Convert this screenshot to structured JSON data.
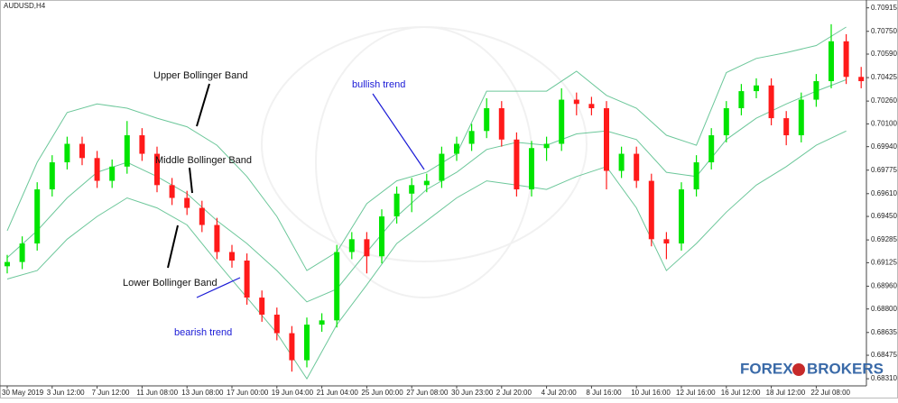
{
  "chart_data": {
    "type": "candlestick",
    "title": "AUDUSD,H4",
    "categories": [
      "30 May 2019",
      null,
      null,
      "3 Jun 12:00",
      null,
      null,
      "7 Jun 12:00",
      null,
      null,
      "11 Jun 08:00",
      null,
      null,
      "13 Jun 08:00",
      null,
      null,
      "17 Jun 00:00",
      null,
      null,
      "19 Jun 04:00",
      null,
      null,
      "21 Jun 04:00",
      null,
      null,
      "25 Jun 00:00",
      null,
      null,
      "27 Jun 08:00",
      null,
      null,
      "30 Jun 23:00",
      null,
      null,
      "2 Jul 20:00",
      null,
      null,
      "4 Jul 20:00",
      null,
      null,
      "8 Jul 16:00",
      null,
      null,
      "10 Jul 16:00",
      null,
      null,
      "12 Jul 16:00",
      null,
      null,
      "16 Jul 12:00",
      null,
      null,
      "18 Jul 12:00",
      null,
      null,
      "22 Jul 08:00",
      null,
      null,
      null
    ],
    "open": [
      0.691,
      0.6913,
      0.6926,
      0.6964,
      0.6983,
      0.6996,
      0.6986,
      0.697,
      0.698,
      0.7002,
      0.6989,
      0.6967,
      0.6958,
      0.6951,
      0.6939,
      0.692,
      0.6914,
      0.6888,
      0.6876,
      0.6863,
      0.6844,
      0.6869,
      0.6872,
      0.692,
      0.6929,
      0.6917,
      0.6945,
      0.6961,
      0.6967,
      0.697,
      0.6989,
      0.6996,
      0.7005,
      0.7021,
      0.6999,
      0.6964,
      0.6993,
      0.6996,
      0.7027,
      0.7024,
      0.7021,
      0.6977,
      0.6989,
      0.697,
      0.6929,
      0.6926,
      0.6964,
      0.6983,
      0.7002,
      0.7021,
      0.7033,
      0.7037,
      0.7014,
      0.7002,
      0.7027,
      0.704,
      0.7068,
      0.7043
    ],
    "high": [
      0.6918,
      0.6931,
      0.6969,
      0.6988,
      0.7001,
      0.7001,
      0.6991,
      0.6985,
      0.7012,
      0.7007,
      0.6994,
      0.6972,
      0.6963,
      0.6956,
      0.6944,
      0.6925,
      0.6919,
      0.6893,
      0.6881,
      0.6868,
      0.6874,
      0.6877,
      0.6925,
      0.6934,
      0.6934,
      0.695,
      0.6966,
      0.6972,
      0.6975,
      0.6994,
      0.7001,
      0.701,
      0.7028,
      0.7026,
      0.7004,
      0.6998,
      0.7001,
      0.7035,
      0.7032,
      0.7029,
      0.7026,
      0.6994,
      0.6994,
      0.6975,
      0.6934,
      0.6969,
      0.6988,
      0.7007,
      0.7026,
      0.7038,
      0.7042,
      0.7042,
      0.7019,
      0.7032,
      0.7045,
      0.708,
      0.7073,
      0.705
    ],
    "low": [
      0.6905,
      0.6908,
      0.6921,
      0.6959,
      0.6978,
      0.6981,
      0.6965,
      0.6965,
      0.6975,
      0.6984,
      0.6962,
      0.6953,
      0.6946,
      0.6934,
      0.6915,
      0.6909,
      0.6883,
      0.6871,
      0.6858,
      0.6836,
      0.6839,
      0.6864,
      0.6867,
      0.6915,
      0.6905,
      0.6912,
      0.694,
      0.6948,
      0.6962,
      0.6965,
      0.6984,
      0.6991,
      0.7,
      0.6994,
      0.6959,
      0.6959,
      0.6984,
      0.6991,
      0.7016,
      0.7016,
      0.6964,
      0.6972,
      0.6965,
      0.6924,
      0.6915,
      0.6921,
      0.6959,
      0.6978,
      0.6997,
      0.7016,
      0.7028,
      0.7009,
      0.6995,
      0.6997,
      0.7022,
      0.7035,
      0.7038,
      0.7035
    ],
    "close": [
      0.6913,
      0.6926,
      0.6964,
      0.6983,
      0.6996,
      0.6986,
      0.697,
      0.698,
      0.7002,
      0.6989,
      0.6967,
      0.6958,
      0.6951,
      0.6939,
      0.692,
      0.6914,
      0.6888,
      0.6876,
      0.6863,
      0.6844,
      0.6869,
      0.6872,
      0.692,
      0.6929,
      0.6917,
      0.6945,
      0.6961,
      0.6967,
      0.697,
      0.6989,
      0.6996,
      0.7005,
      0.7021,
      0.6999,
      0.6964,
      0.6993,
      0.6996,
      0.7027,
      0.7024,
      0.7021,
      0.6977,
      0.6989,
      0.697,
      0.6929,
      0.6926,
      0.6964,
      0.6983,
      0.7002,
      0.7021,
      0.7033,
      0.7037,
      0.7014,
      0.7002,
      0.7027,
      0.704,
      0.7068,
      0.7043,
      0.704
    ],
    "up_color": "#00e400",
    "down_color": "#ff1a1a",
    "bands": {
      "x": [
        0,
        2,
        4,
        6,
        8,
        10,
        12,
        14,
        16,
        18,
        20,
        22,
        24,
        26,
        28,
        30,
        32,
        34,
        36,
        38,
        40,
        42,
        44,
        46,
        48,
        50,
        52,
        54,
        56
      ],
      "series": [
        {
          "color": "#6cc79a",
          "values": [
            0.6935,
            0.6983,
            0.7018,
            0.7024,
            0.7021,
            0.7014,
            0.7008,
            0.6995,
            0.6973,
            0.6945,
            0.6907,
            0.692,
            0.6954,
            0.697,
            0.6976,
            0.6989,
            0.7033,
            0.7033,
            0.7033,
            0.7047,
            0.703,
            0.7021,
            0.7002,
            0.6995,
            0.7046,
            0.7056,
            0.706,
            0.7065,
            0.7078
          ]
        },
        {
          "color": "#6cc79a",
          "values": [
            0.6916,
            0.6935,
            0.6958,
            0.6976,
            0.6983,
            0.6973,
            0.6961,
            0.6942,
            0.6926,
            0.6907,
            0.6885,
            0.6894,
            0.692,
            0.6945,
            0.6964,
            0.6976,
            0.6992,
            0.6997,
            0.6995,
            0.7003,
            0.7005,
            0.6999,
            0.6976,
            0.6973,
            0.6999,
            0.7014,
            0.7024,
            0.7033,
            0.7041
          ]
        },
        {
          "color": "#6cc79a",
          "values": [
            0.6901,
            0.6907,
            0.6929,
            0.6945,
            0.6958,
            0.6951,
            0.6939,
            0.6913,
            0.6888,
            0.6863,
            0.6831,
            0.6869,
            0.6897,
            0.6926,
            0.6942,
            0.6958,
            0.697,
            0.6967,
            0.6964,
            0.6973,
            0.698,
            0.6951,
            0.6907,
            0.6926,
            0.6948,
            0.6967,
            0.698,
            0.6995,
            0.7005
          ]
        }
      ]
    },
    "ylim": [
      0.6826,
      0.7097
    ],
    "yticks": [
      0.70915,
      {
        "value": 0.7075,
        "label": "0.70750"
      },
      {
        "value": 0.7059,
        "label": "0.70590"
      },
      0.70425,
      {
        "value": 0.7026,
        "label": "0.70260"
      },
      {
        "value": 0.701,
        "label": "0.70100"
      },
      {
        "value": 0.6994,
        "label": "0.69940"
      },
      0.69775,
      {
        "value": 0.6961,
        "label": "0.69610"
      },
      {
        "value": 0.6945,
        "label": "0.69450"
      },
      0.69285,
      0.69125,
      {
        "value": 0.6896,
        "label": "0.68960"
      },
      {
        "value": 0.688,
        "label": "0.68800"
      },
      0.68635,
      0.68475,
      {
        "value": 0.6831,
        "label": "0.68310"
      }
    ],
    "annotations": {
      "upper": "Upper Bollinger Band",
      "middle": "Middle Bollinger Band",
      "lower": "Lower Bollinger Band",
      "bearish": "bearish trend",
      "bullish": "bullish trend"
    },
    "logo": {
      "left": "FOREX",
      "right": "BROKERS"
    }
  }
}
